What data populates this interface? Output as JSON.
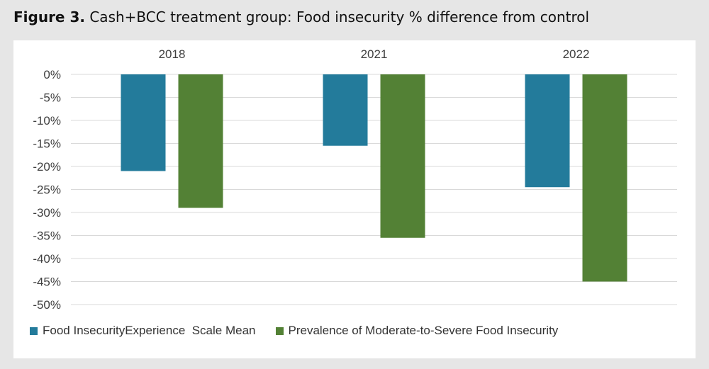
{
  "figure": {
    "label": "Figure 3.",
    "caption": "Cash+BCC treatment group: Food insecurity % difference from control"
  },
  "chart_data": {
    "type": "bar",
    "categories": [
      "2018",
      "2021",
      "2022"
    ],
    "category_axis_position": "top",
    "series": [
      {
        "name": "Food InsecurityExperience  Scale Mean",
        "color": "#237b9b",
        "values": [
          -21,
          -15.5,
          -24.5
        ]
      },
      {
        "name": "Prevalence of Moderate-to-Severe Food Insecurity",
        "color": "#538135",
        "values": [
          -29,
          -35.5,
          -45
        ]
      }
    ],
    "ylim": [
      -50,
      0
    ],
    "yticks": [
      0,
      -5,
      -10,
      -15,
      -20,
      -25,
      -30,
      -35,
      -40,
      -45,
      -50
    ],
    "ytick_labels": [
      "0%",
      "-5%",
      "-10%",
      "-15%",
      "-20%",
      "-25%",
      "-30%",
      "-35%",
      "-40%",
      "-45%",
      "-50%"
    ],
    "grid": true,
    "legend": "bottom"
  }
}
